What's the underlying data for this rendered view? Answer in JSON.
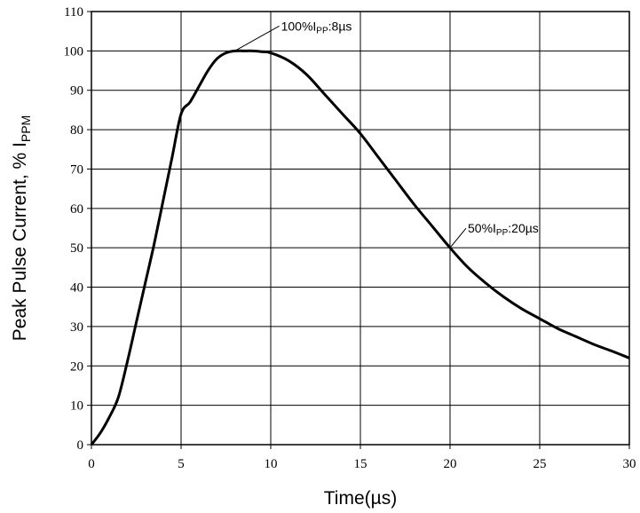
{
  "chart_data": {
    "type": "line",
    "title": "",
    "xlabel": "Time(µs)",
    "ylabel": {
      "main": "Peak Pulse Current, % I",
      "sub": "PPM"
    },
    "xlim": [
      0,
      30
    ],
    "ylim": [
      0,
      110
    ],
    "xticks": [
      0,
      5,
      10,
      15,
      20,
      25,
      30
    ],
    "yticks": [
      0,
      10,
      20,
      30,
      40,
      50,
      60,
      70,
      80,
      90,
      100,
      110
    ],
    "grid": true,
    "series": [
      {
        "x": [
          0,
          0.5,
          1,
          1.5,
          2,
          2.5,
          3,
          3.5,
          4,
          4.5,
          5,
          5.5,
          6,
          6.5,
          7,
          7.5,
          8,
          8.5,
          9,
          9.5,
          10,
          11,
          12,
          13,
          14,
          15,
          16,
          17,
          18,
          19,
          20,
          21,
          22,
          23,
          24,
          25,
          26,
          27,
          28,
          29,
          30
        ],
        "y": [
          0,
          3,
          7,
          12,
          21,
          31,
          41,
          51,
          62,
          73,
          84,
          87,
          91,
          95,
          98,
          99.5,
          100,
          100,
          100,
          99.8,
          99.5,
          97.5,
          94,
          89,
          84,
          79,
          73,
          67,
          61,
          55.5,
          50,
          45,
          41,
          37.5,
          34.5,
          32,
          29.5,
          27.5,
          25.5,
          23.8,
          22
        ]
      }
    ],
    "annotations": [
      {
        "x": 8,
        "y": 100,
        "text_main": "100%I",
        "text_sub": "PP",
        "text_tail": ":8µs"
      },
      {
        "x": 20,
        "y": 50,
        "text_main": "50%I",
        "text_sub": "PP",
        "text_tail": ":20µs"
      }
    ]
  }
}
